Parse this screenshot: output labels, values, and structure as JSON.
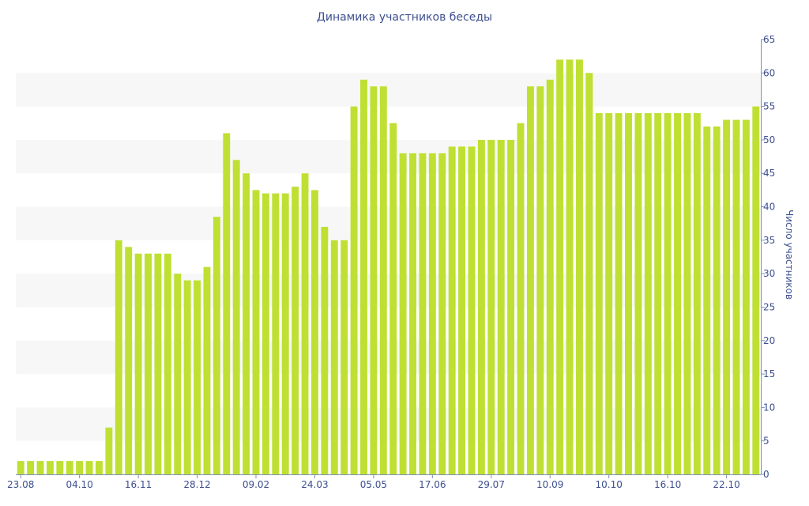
{
  "chart_data": {
    "type": "bar",
    "title": "Динамика участников беседы",
    "xlabel": "",
    "ylabel": "Число участников",
    "ylim": [
      0,
      65
    ],
    "yticks": [
      0,
      5,
      10,
      15,
      20,
      25,
      30,
      35,
      40,
      45,
      50,
      55,
      60,
      65
    ],
    "y_axis_side": "right",
    "grid": "alternating horizontal bands",
    "bar_color": "#bfe033",
    "band_color": "#f7f7f7",
    "text_color": "#3d4f8f",
    "x_tick_labels": [
      {
        "index": 0,
        "label": "23.08"
      },
      {
        "index": 6,
        "label": "04.10"
      },
      {
        "index": 12,
        "label": "16.11"
      },
      {
        "index": 18,
        "label": "28.12"
      },
      {
        "index": 24,
        "label": "09.02"
      },
      {
        "index": 30,
        "label": "24.03"
      },
      {
        "index": 36,
        "label": "05.05"
      },
      {
        "index": 42,
        "label": "17.06"
      },
      {
        "index": 48,
        "label": "29.07"
      },
      {
        "index": 54,
        "label": "10.09"
      },
      {
        "index": 60,
        "label": "10.10"
      },
      {
        "index": 66,
        "label": "16.10"
      },
      {
        "index": 72,
        "label": "22.10"
      }
    ],
    "values": [
      2,
      2,
      2,
      2,
      2,
      2,
      2,
      2,
      2,
      7,
      35,
      34,
      33,
      33,
      33,
      33,
      30,
      29,
      29,
      31,
      38.5,
      51,
      47,
      45,
      42.5,
      42,
      42,
      42,
      43,
      45,
      42.5,
      37,
      35,
      35,
      55,
      59,
      58,
      58,
      52.5,
      48,
      48,
      48,
      48,
      48,
      49,
      49,
      49,
      50,
      50,
      50,
      50,
      52.5,
      58,
      58,
      59,
      62,
      62,
      62,
      60,
      54,
      54,
      54,
      54,
      54,
      54,
      54,
      54,
      54,
      54,
      54,
      52,
      52,
      53,
      53,
      53,
      55
    ]
  }
}
